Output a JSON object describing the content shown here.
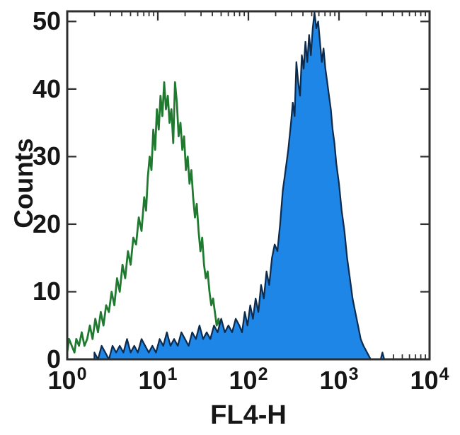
{
  "chart_data": {
    "type": "area",
    "subtype": "flow-cytometry-histogram-overlay",
    "title": "",
    "xlabel": "FL4-H",
    "ylabel": "Counts",
    "x_scale": "log10",
    "xlim_exponents": [
      0,
      4
    ],
    "ylim": [
      0,
      51.5
    ],
    "yticks": [
      0,
      10,
      20,
      30,
      40,
      50
    ],
    "xticks": {
      "base": "10",
      "exponents": [
        0,
        1,
        2,
        3,
        4
      ]
    },
    "grid": "off",
    "legend": "none",
    "colors": {
      "green_line": "#1f7a30",
      "blue_fill": "#1e86e6",
      "blue_edge": "#0d2b4d",
      "frame": "#2f2f2f",
      "text": "#161616"
    },
    "series": [
      {
        "name": "open-histogram-green",
        "style": "open",
        "peak": {
          "x_log10": 1.07,
          "count": 41
        },
        "points": [
          [
            0.0,
            1
          ],
          [
            0.02,
            3
          ],
          [
            0.05,
            2
          ],
          [
            0.08,
            1
          ],
          [
            0.1,
            3
          ],
          [
            0.13,
            2
          ],
          [
            0.16,
            4
          ],
          [
            0.19,
            2
          ],
          [
            0.22,
            3
          ],
          [
            0.25,
            5
          ],
          [
            0.28,
            3
          ],
          [
            0.31,
            6
          ],
          [
            0.34,
            4
          ],
          [
            0.37,
            7
          ],
          [
            0.4,
            5
          ],
          [
            0.43,
            8
          ],
          [
            0.46,
            7
          ],
          [
            0.49,
            10
          ],
          [
            0.52,
            8
          ],
          [
            0.55,
            12
          ],
          [
            0.58,
            10
          ],
          [
            0.61,
            14
          ],
          [
            0.64,
            12
          ],
          [
            0.67,
            16
          ],
          [
            0.7,
            14
          ],
          [
            0.73,
            18
          ],
          [
            0.76,
            17
          ],
          [
            0.79,
            21
          ],
          [
            0.82,
            19
          ],
          [
            0.85,
            24
          ],
          [
            0.87,
            22
          ],
          [
            0.89,
            27
          ],
          [
            0.91,
            30
          ],
          [
            0.93,
            28
          ],
          [
            0.95,
            34
          ],
          [
            0.97,
            31
          ],
          [
            0.99,
            37
          ],
          [
            1.01,
            34
          ],
          [
            1.03,
            39
          ],
          [
            1.05,
            36
          ],
          [
            1.07,
            41
          ],
          [
            1.09,
            37
          ],
          [
            1.11,
            39
          ],
          [
            1.13,
            35
          ],
          [
            1.15,
            37
          ],
          [
            1.17,
            32
          ],
          [
            1.19,
            41
          ],
          [
            1.21,
            38
          ],
          [
            1.23,
            33
          ],
          [
            1.25,
            35
          ],
          [
            1.27,
            31
          ],
          [
            1.29,
            33
          ],
          [
            1.31,
            28
          ],
          [
            1.33,
            30
          ],
          [
            1.35,
            26
          ],
          [
            1.37,
            28
          ],
          [
            1.39,
            24
          ],
          [
            1.41,
            21
          ],
          [
            1.43,
            23
          ],
          [
            1.45,
            19
          ],
          [
            1.47,
            16
          ],
          [
            1.49,
            18
          ],
          [
            1.51,
            14
          ],
          [
            1.53,
            12
          ],
          [
            1.55,
            13
          ],
          [
            1.57,
            10
          ],
          [
            1.59,
            8
          ],
          [
            1.61,
            9
          ],
          [
            1.63,
            7
          ],
          [
            1.65,
            5
          ],
          [
            1.67,
            6
          ],
          [
            1.69,
            4
          ],
          [
            1.71,
            5
          ],
          [
            1.73,
            3
          ],
          [
            1.75,
            4
          ],
          [
            1.77,
            2
          ],
          [
            1.79,
            3
          ],
          [
            1.81,
            2
          ],
          [
            1.84,
            1
          ],
          [
            1.87,
            2
          ],
          [
            1.9,
            1
          ],
          [
            1.93,
            0
          ],
          [
            1.96,
            1
          ],
          [
            2.0,
            0
          ]
        ]
      },
      {
        "name": "filled-histogram-blue",
        "style": "filled",
        "peak": {
          "x_log10": 2.73,
          "count": 51
        },
        "points": [
          [
            0.3,
            1
          ],
          [
            0.34,
            0
          ],
          [
            0.38,
            2
          ],
          [
            0.42,
            1
          ],
          [
            0.46,
            0
          ],
          [
            0.5,
            2
          ],
          [
            0.54,
            1
          ],
          [
            0.58,
            2
          ],
          [
            0.62,
            1
          ],
          [
            0.66,
            3
          ],
          [
            0.7,
            1
          ],
          [
            0.74,
            2
          ],
          [
            0.78,
            1
          ],
          [
            0.82,
            3
          ],
          [
            0.86,
            2
          ],
          [
            0.9,
            1
          ],
          [
            0.94,
            2
          ],
          [
            0.98,
            1
          ],
          [
            1.02,
            3
          ],
          [
            1.06,
            2
          ],
          [
            1.1,
            4
          ],
          [
            1.14,
            2
          ],
          [
            1.18,
            3
          ],
          [
            1.22,
            2
          ],
          [
            1.26,
            4
          ],
          [
            1.3,
            3
          ],
          [
            1.34,
            2
          ],
          [
            1.38,
            4
          ],
          [
            1.42,
            3
          ],
          [
            1.46,
            5
          ],
          [
            1.5,
            3
          ],
          [
            1.54,
            4
          ],
          [
            1.58,
            3
          ],
          [
            1.62,
            5
          ],
          [
            1.66,
            4
          ],
          [
            1.7,
            6
          ],
          [
            1.74,
            4
          ],
          [
            1.78,
            5
          ],
          [
            1.82,
            4
          ],
          [
            1.86,
            6
          ],
          [
            1.9,
            5
          ],
          [
            1.93,
            4
          ],
          [
            1.96,
            7
          ],
          [
            1.99,
            5
          ],
          [
            2.02,
            8
          ],
          [
            2.05,
            6
          ],
          [
            2.08,
            9
          ],
          [
            2.11,
            7
          ],
          [
            2.14,
            11
          ],
          [
            2.17,
            9
          ],
          [
            2.2,
            13
          ],
          [
            2.23,
            11
          ],
          [
            2.26,
            15
          ],
          [
            2.29,
            17
          ],
          [
            2.32,
            16
          ],
          [
            2.35,
            20
          ],
          [
            2.38,
            25
          ],
          [
            2.41,
            28
          ],
          [
            2.44,
            31
          ],
          [
            2.47,
            35
          ],
          [
            2.49,
            38
          ],
          [
            2.51,
            36
          ],
          [
            2.53,
            44
          ],
          [
            2.55,
            41
          ],
          [
            2.57,
            39
          ],
          [
            2.59,
            45
          ],
          [
            2.61,
            43
          ],
          [
            2.63,
            47
          ],
          [
            2.65,
            44
          ],
          [
            2.67,
            48
          ],
          [
            2.69,
            45
          ],
          [
            2.71,
            49
          ],
          [
            2.73,
            51.3
          ],
          [
            2.75,
            49
          ],
          [
            2.77,
            50
          ],
          [
            2.79,
            47
          ],
          [
            2.81,
            44
          ],
          [
            2.83,
            46
          ],
          [
            2.85,
            43
          ],
          [
            2.87,
            41
          ],
          [
            2.89,
            39
          ],
          [
            2.91,
            37
          ],
          [
            2.93,
            34
          ],
          [
            2.95,
            32
          ],
          [
            2.97,
            29
          ],
          [
            3.0,
            26
          ],
          [
            3.03,
            22
          ],
          [
            3.06,
            19
          ],
          [
            3.09,
            15
          ],
          [
            3.12,
            12
          ],
          [
            3.15,
            9
          ],
          [
            3.18,
            7
          ],
          [
            3.21,
            5
          ],
          [
            3.24,
            3
          ],
          [
            3.27,
            2
          ],
          [
            3.31,
            1
          ],
          [
            3.35,
            0
          ],
          [
            3.46,
            0
          ],
          [
            3.48,
            1
          ],
          [
            3.5,
            0
          ]
        ]
      }
    ]
  }
}
